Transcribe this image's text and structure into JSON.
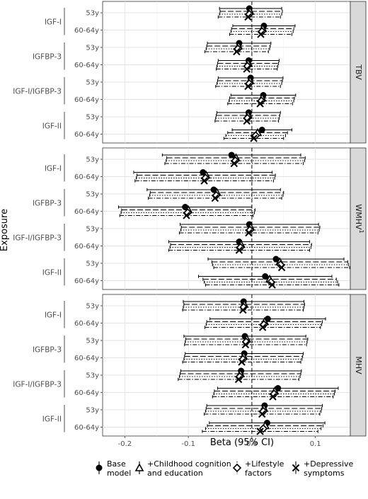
{
  "chart_data": {
    "type": "forest",
    "xlabel": "Beta (95% CI)",
    "ylabel": "Exposure",
    "xlim": [
      -0.235,
      0.155
    ],
    "x_ticks": [
      -0.2,
      -0.1,
      0.0,
      0.1
    ],
    "x_tick_labels": [
      "-0.2",
      "-0.1",
      "0.0",
      "0.1"
    ],
    "reference_line": 0,
    "grid": true,
    "legend_position": "bottom",
    "series": [
      {
        "key": "base",
        "name": "Base model",
        "line": "solid",
        "marker": "filled-circle"
      },
      {
        "key": "childhood",
        "name": "+Childhood cognition and education",
        "line": "long-dash",
        "marker": "open-triangle"
      },
      {
        "key": "lifestyle",
        "name": "+Lifestyle factors",
        "line": "dotted",
        "marker": "open-diamond"
      },
      {
        "key": "depressive",
        "name": "+Depressive symptoms",
        "line": "dot-dash",
        "marker": "x"
      }
    ],
    "legend_lines": {
      "base": [
        "Base",
        "model"
      ],
      "childhood": [
        "+Childhood cognition",
        "and education"
      ],
      "lifestyle": [
        "+Lifestyle",
        "factors"
      ],
      "depressive": [
        "+Depressive",
        "symptoms"
      ]
    },
    "groups": [
      "IGF-I",
      "IGFBP-3",
      "IGF-I/IGFBP-3",
      "IGF-II"
    ],
    "ages": [
      "53y",
      "60-64y"
    ],
    "panels": [
      {
        "label": "TBV",
        "label_sup": "",
        "rows": [
          {
            "group": "IGF-I",
            "age": "53y",
            "estimates": [
              [
                -0.004,
                -0.051,
                0.047
              ],
              [
                -0.003,
                -0.05,
                0.048
              ],
              [
                -0.004,
                -0.051,
                0.047
              ],
              [
                -0.006,
                -0.053,
                0.045
              ]
            ]
          },
          {
            "group": "IGF-I",
            "age": "60-64y",
            "estimates": [
              [
                0.019,
                -0.03,
                0.068
              ],
              [
                0.017,
                -0.032,
                0.066
              ],
              [
                0.016,
                -0.033,
                0.065
              ],
              [
                0.014,
                -0.035,
                0.063
              ]
            ]
          },
          {
            "group": "IGFBP-3",
            "age": "53y",
            "estimates": [
              [
                -0.02,
                -0.07,
                0.03
              ],
              [
                -0.021,
                -0.071,
                0.029
              ],
              [
                -0.022,
                -0.072,
                0.028
              ],
              [
                -0.024,
                -0.074,
                0.026
              ]
            ]
          },
          {
            "group": "IGFBP-3",
            "age": "60-64y",
            "estimates": [
              [
                -0.005,
                -0.053,
                0.043
              ],
              [
                -0.006,
                -0.054,
                0.042
              ],
              [
                -0.007,
                -0.055,
                0.041
              ],
              [
                -0.008,
                -0.056,
                0.04
              ]
            ]
          },
          {
            "group": "IGF-I/IGFBP-3",
            "age": "53y",
            "estimates": [
              [
                -0.002,
                -0.053,
                0.049
              ],
              [
                -0.003,
                -0.054,
                0.048
              ],
              [
                -0.004,
                -0.055,
                0.047
              ],
              [
                -0.006,
                -0.057,
                0.045
              ]
            ]
          },
          {
            "group": "IGF-I/IGFBP-3",
            "age": "60-64y",
            "estimates": [
              [
                0.018,
                -0.033,
                0.069
              ],
              [
                0.016,
                -0.035,
                0.067
              ],
              [
                0.015,
                -0.036,
                0.066
              ],
              [
                0.013,
                -0.038,
                0.064
              ]
            ]
          },
          {
            "group": "IGF-II",
            "age": "53y",
            "estimates": [
              [
                -0.005,
                -0.055,
                0.045
              ],
              [
                -0.006,
                -0.056,
                0.044
              ],
              [
                -0.007,
                -0.057,
                0.043
              ],
              [
                -0.008,
                -0.058,
                0.042
              ]
            ]
          },
          {
            "group": "IGF-II",
            "age": "60-64y",
            "estimates": [
              [
                0.016,
                -0.031,
                0.063
              ],
              [
                0.009,
                -0.038,
                0.056
              ],
              [
                0.006,
                -0.041,
                0.053
              ],
              [
                0.003,
                -0.044,
                0.05
              ]
            ]
          }
        ]
      },
      {
        "label": "WMHV",
        "label_sup": "1",
        "rows": [
          {
            "group": "IGF-I",
            "age": "53y",
            "estimates": [
              [
                -0.032,
                -0.141,
                0.077
              ],
              [
                -0.025,
                -0.134,
                0.084
              ],
              [
                -0.026,
                -0.135,
                0.083
              ],
              [
                -0.028,
                -0.137,
                0.081
              ]
            ]
          },
          {
            "group": "IGF-I",
            "age": "60-64y",
            "estimates": [
              [
                -0.077,
                -0.186,
                0.032
              ],
              [
                -0.072,
                -0.181,
                0.037
              ],
              [
                -0.073,
                -0.182,
                0.036
              ],
              [
                -0.075,
                -0.184,
                0.034
              ]
            ]
          },
          {
            "group": "IGFBP-3",
            "age": "53y",
            "estimates": [
              [
                -0.06,
                -0.165,
                0.045
              ],
              [
                -0.055,
                -0.16,
                0.05
              ],
              [
                -0.056,
                -0.161,
                0.049
              ],
              [
                -0.058,
                -0.163,
                0.047
              ]
            ]
          },
          {
            "group": "IGFBP-3",
            "age": "60-64y",
            "estimates": [
              [
                -0.105,
                -0.21,
                0.0
              ],
              [
                -0.1,
                -0.205,
                0.005
              ],
              [
                -0.101,
                -0.206,
                0.004
              ],
              [
                -0.103,
                -0.208,
                0.002
              ]
            ]
          },
          {
            "group": "IGF-I/IGFBP-3",
            "age": "53y",
            "estimates": [
              [
                -0.004,
                -0.113,
                0.105
              ],
              [
                -0.002,
                -0.111,
                0.107
              ],
              [
                -0.003,
                -0.112,
                0.106
              ],
              [
                -0.005,
                -0.114,
                0.104
              ]
            ]
          },
          {
            "group": "IGF-I/IGFBP-3",
            "age": "60-64y",
            "estimates": [
              [
                -0.02,
                -0.131,
                0.091
              ],
              [
                -0.017,
                -0.128,
                0.094
              ],
              [
                -0.018,
                -0.129,
                0.093
              ],
              [
                -0.02,
                -0.131,
                0.091
              ]
            ]
          },
          {
            "group": "IGF-II",
            "age": "53y",
            "estimates": [
              [
                0.038,
                -0.069,
                0.145
              ],
              [
                0.044,
                -0.063,
                0.151
              ],
              [
                0.045,
                -0.062,
                0.152
              ],
              [
                0.047,
                -0.06,
                0.154
              ]
            ]
          },
          {
            "group": "IGF-II",
            "age": "60-64y",
            "estimates": [
              [
                0.021,
                -0.084,
                0.126
              ],
              [
                0.028,
                -0.077,
                0.133
              ],
              [
                0.03,
                -0.075,
                0.135
              ],
              [
                0.032,
                -0.073,
                0.137
              ]
            ]
          }
        ]
      },
      {
        "label": "MHV",
        "label_sup": "",
        "rows": [
          {
            "group": "IGF-I",
            "age": "53y",
            "estimates": [
              [
                -0.013,
                -0.108,
                0.082
              ],
              [
                -0.012,
                -0.107,
                0.083
              ],
              [
                -0.013,
                -0.108,
                0.082
              ],
              [
                -0.014,
                -0.109,
                0.081
              ]
            ]
          },
          {
            "group": "IGF-I",
            "age": "60-64y",
            "estimates": [
              [
                0.025,
                -0.066,
                0.116
              ],
              [
                0.02,
                -0.071,
                0.111
              ],
              [
                0.019,
                -0.072,
                0.11
              ],
              [
                0.017,
                -0.074,
                0.108
              ]
            ]
          },
          {
            "group": "IGFBP-3",
            "age": "53y",
            "estimates": [
              [
                -0.011,
                -0.107,
                0.085
              ],
              [
                -0.008,
                -0.104,
                0.088
              ],
              [
                -0.009,
                -0.105,
                0.087
              ],
              [
                -0.01,
                -0.106,
                0.086
              ]
            ]
          },
          {
            "group": "IGFBP-3",
            "age": "60-64y",
            "estimates": [
              [
                -0.012,
                -0.105,
                0.081
              ],
              [
                -0.013,
                -0.106,
                0.08
              ],
              [
                -0.014,
                -0.107,
                0.079
              ],
              [
                -0.016,
                -0.109,
                0.077
              ]
            ]
          },
          {
            "group": "IGF-I/IGFBP-3",
            "age": "53y",
            "estimates": [
              [
                -0.017,
                -0.112,
                0.078
              ],
              [
                -0.018,
                -0.113,
                0.077
              ],
              [
                -0.019,
                -0.114,
                0.076
              ],
              [
                -0.021,
                -0.116,
                0.074
              ]
            ]
          },
          {
            "group": "IGF-I/IGFBP-3",
            "age": "60-64y",
            "estimates": [
              [
                0.041,
                -0.054,
                0.136
              ],
              [
                0.036,
                -0.059,
                0.131
              ],
              [
                0.035,
                -0.06,
                0.13
              ],
              [
                0.033,
                -0.062,
                0.128
              ]
            ]
          },
          {
            "group": "IGF-II",
            "age": "53y",
            "estimates": [
              [
                0.02,
                -0.071,
                0.111
              ],
              [
                0.019,
                -0.072,
                0.11
              ],
              [
                0.018,
                -0.073,
                0.109
              ],
              [
                0.016,
                -0.075,
                0.107
              ]
            ]
          },
          {
            "group": "IGF-II",
            "age": "60-64y",
            "estimates": [
              [
                0.024,
                -0.067,
                0.115
              ],
              [
                0.021,
                -0.07,
                0.112
              ],
              [
                0.018,
                -0.073,
                0.109
              ],
              [
                0.013,
                -0.078,
                0.104
              ]
            ]
          }
        ]
      }
    ]
  }
}
